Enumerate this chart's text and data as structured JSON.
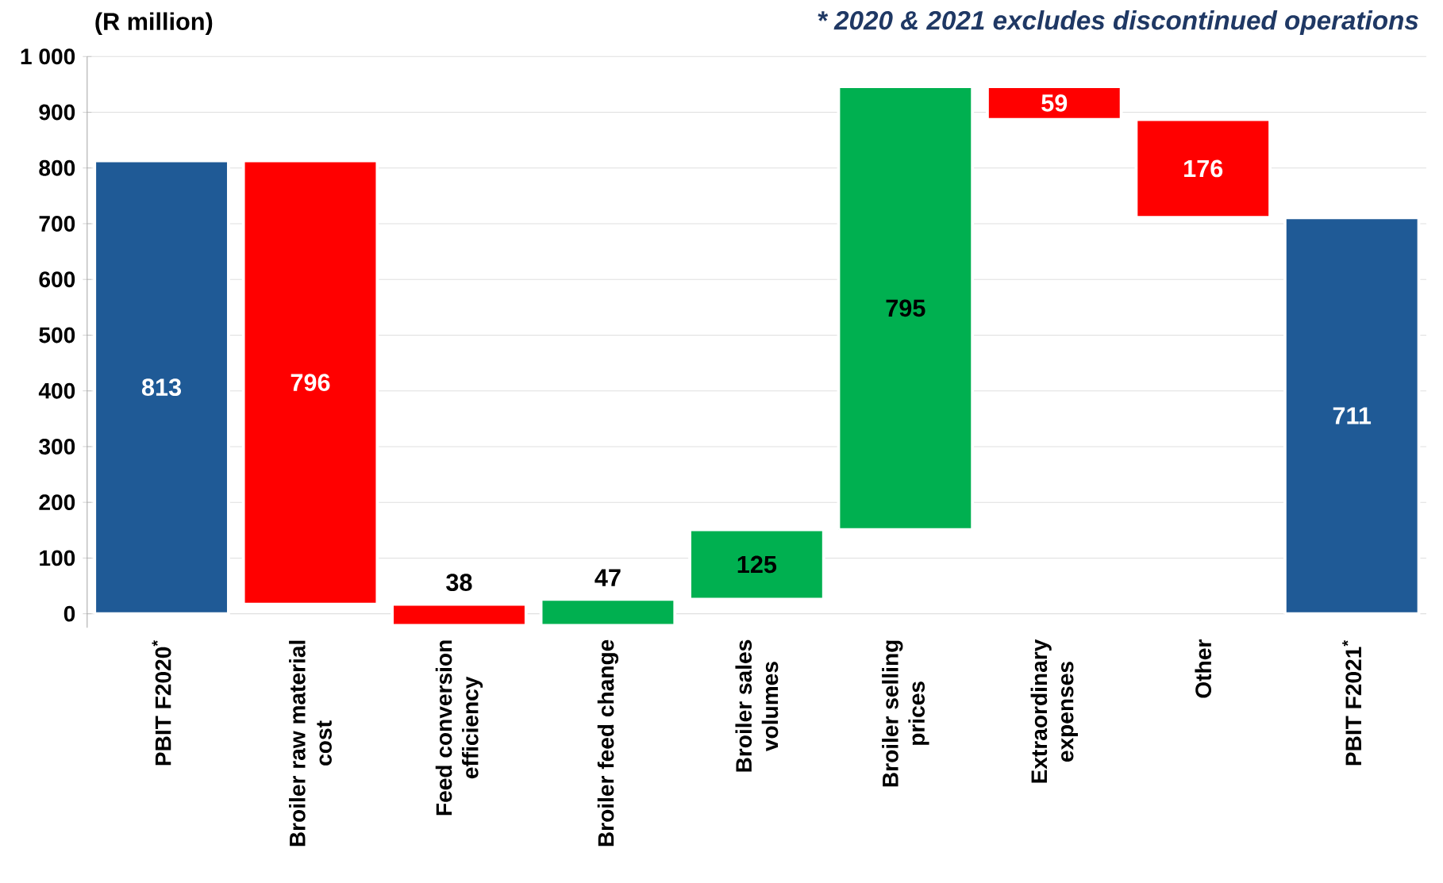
{
  "chart_data": {
    "type": "bar",
    "ylabel": "(R million)",
    "annotations": [
      "* 2020 & 2021 excludes discontinued operations"
    ],
    "categories": [
      "PBIT F2020$^{*}$",
      "Broiler raw material cost",
      "Feed conversion efficiency",
      "Broiler feed change",
      "Broiler sales volumes",
      "Broiler selling prices",
      "Extraordinary expenses",
      "Other",
      "PBIT F2021$^{*}$"
    ],
    "values": [
      813,
      796,
      38,
      47,
      125,
      795,
      59,
      176,
      711
    ],
    "base": [
      0,
      17,
      -21,
      -21,
      26,
      151,
      887,
      711,
      0
    ],
    "colors": [
      "#1f5a96",
      "#ff0000",
      "#ff0000",
      "#00b050",
      "#00b050",
      "#00b050",
      "#ff0000",
      "#ff0000",
      "#1f5a96"
    ],
    "data_labels": true,
    "ylim": [
      -25,
      1000
    ],
    "yticks": [
      0,
      100,
      200,
      300,
      400,
      500,
      600,
      700,
      800,
      900,
      {
        "value": 1000,
        "label": "1 000"
      }
    ],
    "grid": "y"
  }
}
